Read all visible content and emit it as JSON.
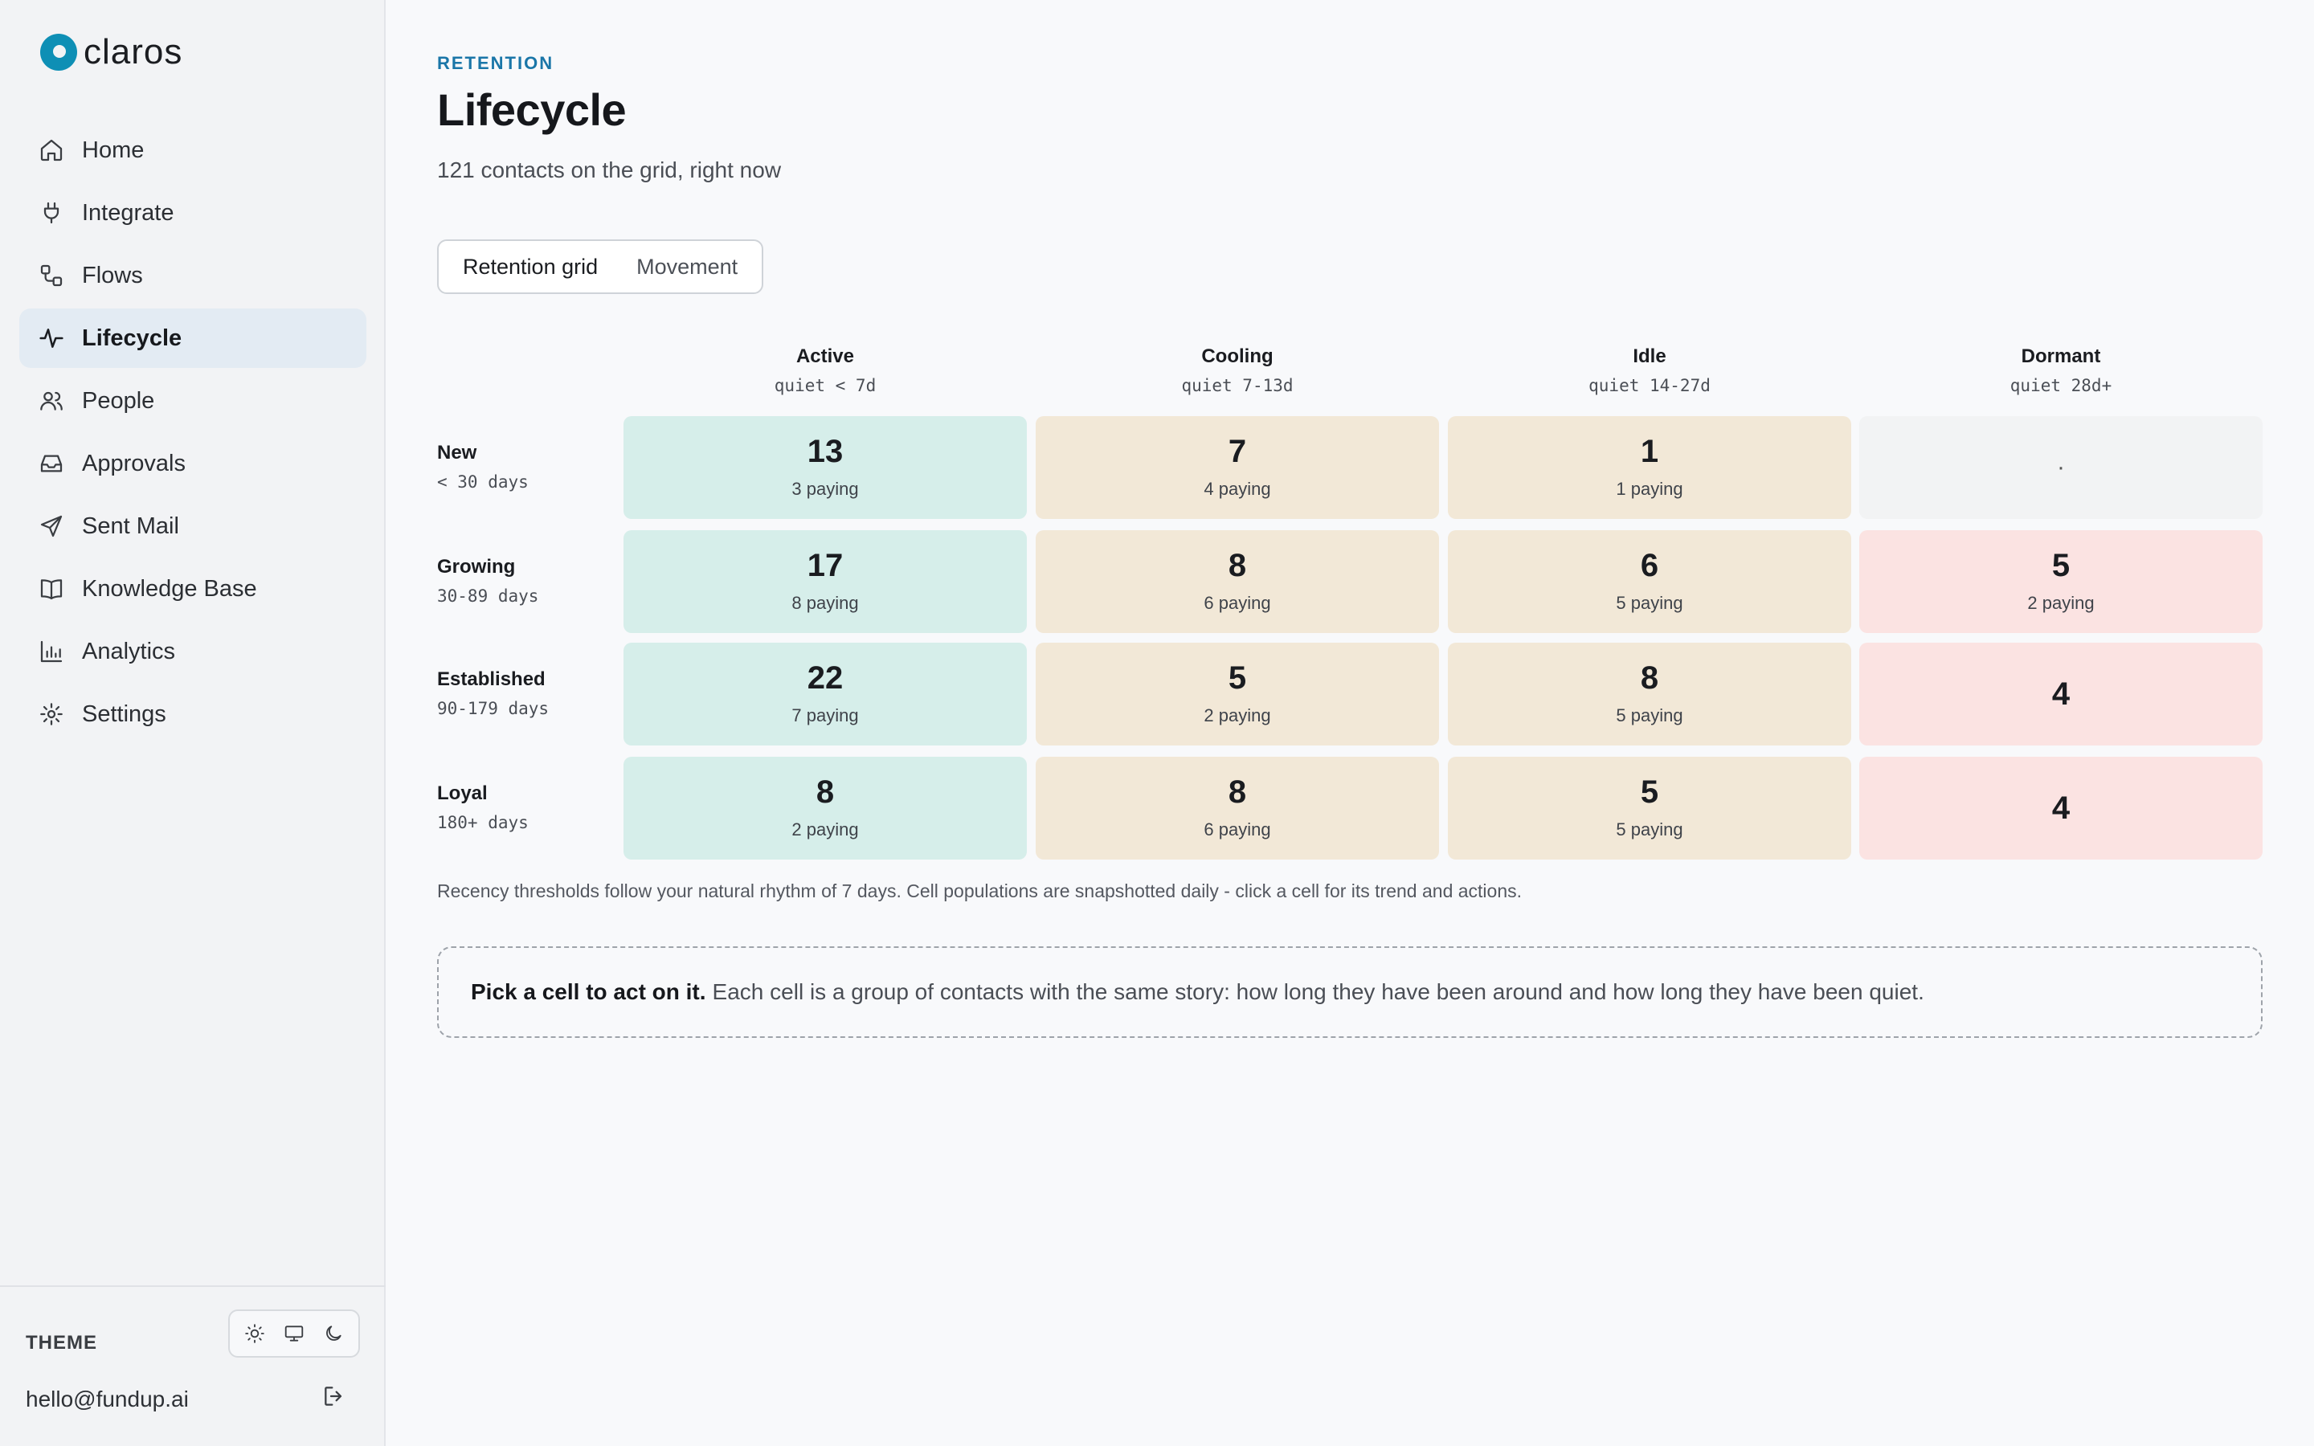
{
  "app": {
    "brand": "claros",
    "brand_color": "#0e8fb5"
  },
  "sidebar": {
    "items": [
      {
        "label": "Home",
        "icon": "home-icon",
        "active": false
      },
      {
        "label": "Integrate",
        "icon": "plug-icon",
        "active": false
      },
      {
        "label": "Flows",
        "icon": "flows-icon",
        "active": false
      },
      {
        "label": "Lifecycle",
        "icon": "pulse-icon",
        "active": true
      },
      {
        "label": "People",
        "icon": "people-icon",
        "active": false
      },
      {
        "label": "Approvals",
        "icon": "inbox-icon",
        "active": false
      },
      {
        "label": "Sent Mail",
        "icon": "send-icon",
        "active": false
      },
      {
        "label": "Knowledge Base",
        "icon": "book-icon",
        "active": false
      },
      {
        "label": "Analytics",
        "icon": "bar-chart-icon",
        "active": false
      },
      {
        "label": "Settings",
        "icon": "gear-icon",
        "active": false
      }
    ],
    "theme_label": "THEME",
    "theme_options": [
      "sun-icon",
      "monitor-icon",
      "moon-icon"
    ],
    "user_email": "hello@fundup.ai"
  },
  "header": {
    "eyebrow": "RETENTION",
    "title": "Lifecycle",
    "subtitle": "121 contacts on the grid, right now"
  },
  "tabs": [
    {
      "label": "Retention grid",
      "active": true
    },
    {
      "label": "Movement",
      "active": false
    }
  ],
  "grid": {
    "columns": [
      {
        "name": "Active",
        "sub": "quiet < 7d",
        "kind": "active"
      },
      {
        "name": "Cooling",
        "sub": "quiet 7-13d",
        "kind": "cooling"
      },
      {
        "name": "Idle",
        "sub": "quiet 14-27d",
        "kind": "cooling"
      },
      {
        "name": "Dormant",
        "sub": "quiet 28d+",
        "kind": "dormant"
      }
    ],
    "rows": [
      {
        "name": "New",
        "sub": "< 30 days",
        "cells": [
          {
            "count": "13",
            "paying": "3 paying"
          },
          {
            "count": "7",
            "paying": "4 paying"
          },
          {
            "count": "1",
            "paying": "1 paying"
          },
          {
            "count": "·",
            "paying": "",
            "empty": true
          }
        ]
      },
      {
        "name": "Growing",
        "sub": "30-89 days",
        "cells": [
          {
            "count": "17",
            "paying": "8 paying"
          },
          {
            "count": "8",
            "paying": "6 paying"
          },
          {
            "count": "6",
            "paying": "5 paying"
          },
          {
            "count": "5",
            "paying": "2 paying"
          }
        ]
      },
      {
        "name": "Established",
        "sub": "90-179 days",
        "cells": [
          {
            "count": "22",
            "paying": "7 paying"
          },
          {
            "count": "5",
            "paying": "2 paying"
          },
          {
            "count": "8",
            "paying": "5 paying"
          },
          {
            "count": "4",
            "paying": ""
          }
        ]
      },
      {
        "name": "Loyal",
        "sub": "180+ days",
        "cells": [
          {
            "count": "8",
            "paying": "2 paying"
          },
          {
            "count": "8",
            "paying": "6 paying"
          },
          {
            "count": "5",
            "paying": "5 paying"
          },
          {
            "count": "4",
            "paying": ""
          }
        ]
      }
    ],
    "footnote": "Recency thresholds follow your natural rhythm of 7 days. Cell populations are snapshotted daily - click a cell for its trend and actions."
  },
  "callout": {
    "strong": "Pick a cell to act on it.",
    "text": "Each cell is a group of contacts with the same story: how long they have been around and how long they have been quiet."
  }
}
